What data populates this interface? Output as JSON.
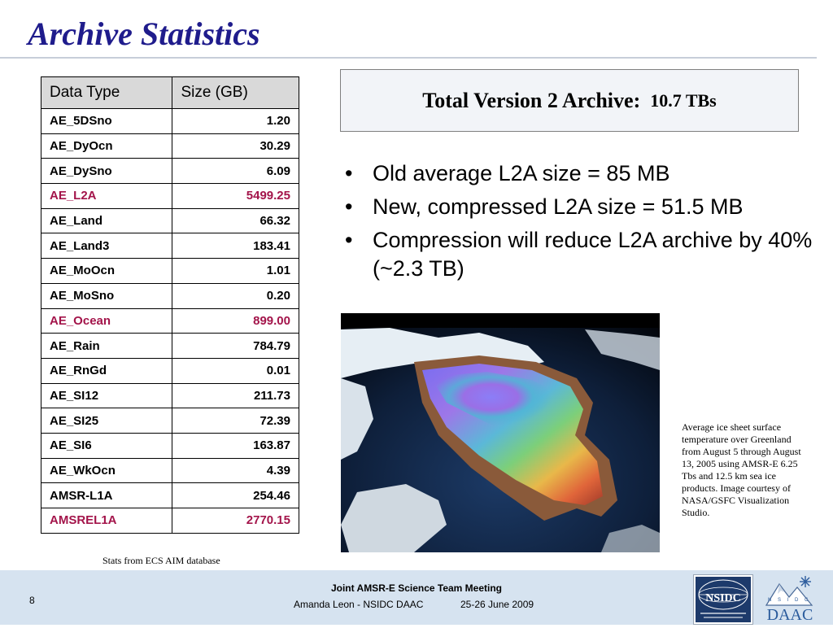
{
  "slide": {
    "title": "Archive Statistics",
    "page_number": "8"
  },
  "table": {
    "headers": [
      "Data Type",
      "Size (GB)"
    ],
    "rows": [
      {
        "type": "AE_5DSno",
        "size": "1.20",
        "highlight": false
      },
      {
        "type": "AE_DyOcn",
        "size": "30.29",
        "highlight": false
      },
      {
        "type": "AE_DySno",
        "size": "6.09",
        "highlight": false
      },
      {
        "type": "AE_L2A",
        "size": "5499.25",
        "highlight": true
      },
      {
        "type": "AE_Land",
        "size": "66.32",
        "highlight": false
      },
      {
        "type": "AE_Land3",
        "size": "183.41",
        "highlight": false
      },
      {
        "type": "AE_MoOcn",
        "size": "1.01",
        "highlight": false
      },
      {
        "type": "AE_MoSno",
        "size": "0.20",
        "highlight": false
      },
      {
        "type": "AE_Ocean",
        "size": "899.00",
        "highlight": true
      },
      {
        "type": "AE_Rain",
        "size": "784.79",
        "highlight": false
      },
      {
        "type": "AE_RnGd",
        "size": "0.01",
        "highlight": false
      },
      {
        "type": "AE_SI12",
        "size": "211.73",
        "highlight": false
      },
      {
        "type": "AE_SI25",
        "size": "72.39",
        "highlight": false
      },
      {
        "type": "AE_SI6",
        "size": "163.87",
        "highlight": false
      },
      {
        "type": "AE_WkOcn",
        "size": "4.39",
        "highlight": false
      },
      {
        "type": "AMSR-L1A",
        "size": "254.46",
        "highlight": false
      },
      {
        "type": "AMSREL1A",
        "size": "2770.15",
        "highlight": true
      }
    ],
    "caption": "Stats from ECS AIM database",
    "highlight_color": "#a3144a"
  },
  "total": {
    "label": "Total Version 2 Archive:",
    "value": "10.7 TBs"
  },
  "bullets": [
    "Old average L2A size = 85 MB",
    "New, compressed L2A size = 51.5 MB",
    "Compression will reduce L2A archive by 40% (~2.3 TB)"
  ],
  "image": {
    "icon": "greenland-temperature-map",
    "caption": "Average ice sheet surface temperature over Greenland from August 5 through August 13, 2005 using AMSR-E 6.25 Tbs and 12.5 km sea ice products. Image courtesy of NASA/GSFC Visualization Studio."
  },
  "footer": {
    "meeting": "Joint AMSR-E Science Team Meeting",
    "presenter": "Amanda Leon - NSIDC DAAC",
    "dates": "25-26 June 2009",
    "logo1_text": "NSIDC",
    "logo2_text": "DAAC",
    "background": "#d6e3f0"
  },
  "colors": {
    "title": "#1f1c8c"
  }
}
